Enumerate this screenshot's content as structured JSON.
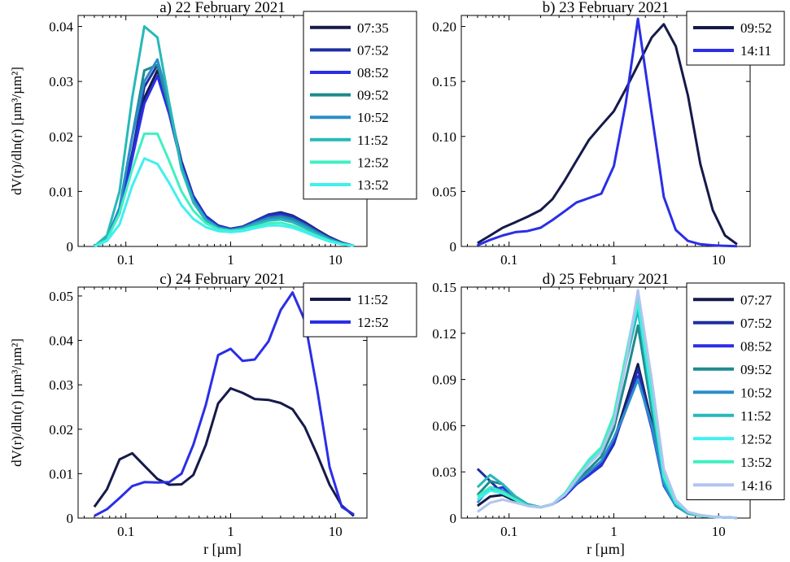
{
  "figure": {
    "ylabel_left": "dV(r)/dln(r) [µm³/µm²]",
    "xlabel_bottom": "r [µm]"
  },
  "chart_data": [
    {
      "type": "line",
      "title": "a) 22 February 2021",
      "xscale": "log",
      "xlim": [
        0.035,
        20
      ],
      "ylim": [
        0,
        0.042
      ],
      "xticks": [
        0.1,
        1,
        10
      ],
      "xtick_labels": [
        "0.1",
        "1",
        "10"
      ],
      "yticks": [
        0,
        0.01,
        0.02,
        0.03,
        0.04
      ],
      "ytick_labels": [
        "0",
        "0.01",
        "0.02",
        "0.03",
        "0.04"
      ],
      "ylabel": "dV(r)/dln(r) [µm³/µm²]",
      "xlabel": "",
      "legend_position": "top-right",
      "x": [
        0.05,
        0.066,
        0.087,
        0.115,
        0.15,
        0.2,
        0.26,
        0.34,
        0.44,
        0.58,
        0.76,
        1.0,
        1.3,
        1.7,
        2.3,
        3.0,
        3.9,
        5.1,
        6.7,
        8.8,
        11.5,
        15.0
      ],
      "series": [
        {
          "name": "07:35",
          "color": "#151a4a",
          "values": [
            0,
            0.0015,
            0.006,
            0.017,
            0.027,
            0.032,
            0.025,
            0.015,
            0.009,
            0.0055,
            0.0038,
            0.0032,
            0.0036,
            0.0046,
            0.0058,
            0.0062,
            0.0056,
            0.0044,
            0.003,
            0.0017,
            0.0007,
            0.0001
          ]
        },
        {
          "name": "07:52",
          "color": "#1e2ea0",
          "values": [
            0,
            0.0015,
            0.006,
            0.017,
            0.029,
            0.033,
            0.025,
            0.0155,
            0.0092,
            0.0055,
            0.0038,
            0.0032,
            0.0036,
            0.0046,
            0.0058,
            0.0061,
            0.0055,
            0.0043,
            0.0029,
            0.0016,
            0.0007,
            0.0001
          ]
        },
        {
          "name": "08:52",
          "color": "#2b2ee6",
          "values": [
            0,
            0.0015,
            0.006,
            0.016,
            0.026,
            0.031,
            0.024,
            0.0148,
            0.0088,
            0.0053,
            0.0037,
            0.0031,
            0.0035,
            0.0045,
            0.0055,
            0.0058,
            0.0052,
            0.0041,
            0.0027,
            0.0015,
            0.0006,
            0.0001
          ]
        },
        {
          "name": "09:52",
          "color": "#1e8a8e",
          "values": [
            0,
            0.0015,
            0.007,
            0.02,
            0.032,
            0.033,
            0.025,
            0.0145,
            0.0085,
            0.005,
            0.0035,
            0.003,
            0.0034,
            0.0043,
            0.0052,
            0.0055,
            0.005,
            0.0039,
            0.0026,
            0.0014,
            0.0006,
            0.0001
          ]
        },
        {
          "name": "10:52",
          "color": "#2a8ec8",
          "values": [
            0,
            0.0015,
            0.007,
            0.02,
            0.03,
            0.034,
            0.026,
            0.0145,
            0.0085,
            0.005,
            0.0034,
            0.003,
            0.0033,
            0.0042,
            0.005,
            0.0052,
            0.0047,
            0.0037,
            0.0025,
            0.0013,
            0.0005,
            0.0001
          ]
        },
        {
          "name": "11:52",
          "color": "#27b8b8",
          "values": [
            0,
            0.002,
            0.01,
            0.027,
            0.04,
            0.038,
            0.026,
            0.014,
            0.008,
            0.0047,
            0.0033,
            0.0029,
            0.0032,
            0.004,
            0.0047,
            0.0049,
            0.0044,
            0.0034,
            0.0022,
            0.0012,
            0.0005,
            0.0001
          ]
        },
        {
          "name": "12:52",
          "color": "#40f0c0",
          "values": [
            0,
            0.0012,
            0.006,
            0.014,
            0.0205,
            0.0205,
            0.0155,
            0.01,
            0.0065,
            0.0042,
            0.0031,
            0.0028,
            0.003,
            0.0036,
            0.0042,
            0.0043,
            0.0038,
            0.0029,
            0.0019,
            0.001,
            0.0004,
            0.0001
          ]
        },
        {
          "name": "13:52",
          "color": "#3ff0f0",
          "values": [
            0,
            0.001,
            0.004,
            0.011,
            0.016,
            0.015,
            0.0115,
            0.0075,
            0.005,
            0.0035,
            0.0028,
            0.0026,
            0.0028,
            0.0033,
            0.0038,
            0.0038,
            0.0034,
            0.0026,
            0.0017,
            0.0009,
            0.0004,
            0.0001
          ]
        }
      ]
    },
    {
      "type": "line",
      "title": "b) 23 February 2021",
      "xscale": "log",
      "xlim": [
        0.035,
        20
      ],
      "ylim": [
        0,
        0.21
      ],
      "xticks": [
        0.1,
        1,
        10
      ],
      "xtick_labels": [
        "0.1",
        "1",
        "10"
      ],
      "yticks": [
        0,
        0.05,
        0.1,
        0.15,
        0.2
      ],
      "ytick_labels": [
        "0",
        "0.05",
        "0.10",
        "0.15",
        "0.20"
      ],
      "ylabel": "",
      "xlabel": "",
      "legend_position": "top-right",
      "x": [
        0.05,
        0.066,
        0.087,
        0.115,
        0.15,
        0.2,
        0.26,
        0.34,
        0.44,
        0.58,
        0.76,
        1.0,
        1.3,
        1.7,
        2.3,
        3.0,
        3.9,
        5.1,
        6.7,
        8.8,
        11.5,
        15.0
      ],
      "series": [
        {
          "name": "09:52",
          "color": "#151a4a",
          "values": [
            0.003,
            0.01,
            0.017,
            0.022,
            0.027,
            0.033,
            0.043,
            0.06,
            0.078,
            0.097,
            0.11,
            0.123,
            0.143,
            0.165,
            0.19,
            0.202,
            0.182,
            0.137,
            0.075,
            0.033,
            0.01,
            0.002
          ]
        },
        {
          "name": "14:11",
          "color": "#2b2ee6",
          "values": [
            0.001,
            0.006,
            0.01,
            0.013,
            0.014,
            0.017,
            0.024,
            0.032,
            0.04,
            0.044,
            0.048,
            0.073,
            0.13,
            0.207,
            0.12,
            0.045,
            0.015,
            0.005,
            0.002,
            0.001,
            0.0005,
            0.0002
          ]
        }
      ]
    },
    {
      "type": "line",
      "title": "c) 24 February 2021",
      "xscale": "log",
      "xlim": [
        0.035,
        20
      ],
      "ylim": [
        0,
        0.052
      ],
      "xticks": [
        0.1,
        1,
        10
      ],
      "xtick_labels": [
        "0.1",
        "1",
        "10"
      ],
      "yticks": [
        0,
        0.01,
        0.02,
        0.03,
        0.04,
        0.05
      ],
      "ytick_labels": [
        "0",
        "0.01",
        "0.02",
        "0.03",
        "0.04",
        "0.05"
      ],
      "ylabel": "dV(r)/dln(r) [µm³/µm²]",
      "xlabel": "r [µm]",
      "legend_position": "top-right",
      "x": [
        0.05,
        0.066,
        0.087,
        0.115,
        0.15,
        0.2,
        0.26,
        0.34,
        0.44,
        0.58,
        0.76,
        1.0,
        1.3,
        1.7,
        2.3,
        3.0,
        3.9,
        5.1,
        6.7,
        8.8,
        11.5,
        15.0
      ],
      "series": [
        {
          "name": "11:52",
          "color": "#151a4a",
          "values": [
            0.0025,
            0.0065,
            0.0132,
            0.0146,
            0.0118,
            0.0088,
            0.0075,
            0.0076,
            0.0097,
            0.0165,
            0.0258,
            0.0292,
            0.0282,
            0.0268,
            0.0266,
            0.0259,
            0.0245,
            0.0205,
            0.0143,
            0.0075,
            0.0028,
            0.0005
          ]
        },
        {
          "name": "12:52",
          "color": "#2b2ee6",
          "values": [
            0.0005,
            0.002,
            0.0045,
            0.0072,
            0.0081,
            0.008,
            0.0081,
            0.01,
            0.0165,
            0.0255,
            0.0367,
            0.0381,
            0.0354,
            0.0357,
            0.0398,
            0.0468,
            0.0508,
            0.0445,
            0.029,
            0.0115,
            0.0025,
            0.0008
          ]
        }
      ]
    },
    {
      "type": "line",
      "title": "d) 25 February 2021",
      "xscale": "log",
      "xlim": [
        0.035,
        20
      ],
      "ylim": [
        0,
        0.15
      ],
      "xticks": [
        0.1,
        1,
        10
      ],
      "xtick_labels": [
        "0.1",
        "1",
        "10"
      ],
      "yticks": [
        0,
        0.03,
        0.06,
        0.09,
        0.12,
        0.15
      ],
      "ytick_labels": [
        "0",
        "0.03",
        "0.06",
        "0.09",
        "0.12",
        "0.15"
      ],
      "ylabel": "",
      "xlabel": "r [µm]",
      "legend_position": "top-right",
      "x": [
        0.05,
        0.066,
        0.087,
        0.115,
        0.15,
        0.2,
        0.26,
        0.34,
        0.44,
        0.58,
        0.76,
        1.0,
        1.3,
        1.7,
        2.3,
        3.0,
        3.9,
        5.1,
        6.7,
        8.8,
        11.5,
        15.0
      ],
      "series": [
        {
          "name": "07:27",
          "color": "#151a4a",
          "values": [
            0.008,
            0.014,
            0.015,
            0.011,
            0.008,
            0.007,
            0.009,
            0.014,
            0.022,
            0.028,
            0.035,
            0.05,
            0.075,
            0.1,
            0.062,
            0.022,
            0.008,
            0.003,
            0.0015,
            0.0008,
            0.0004,
            0.0002
          ]
        },
        {
          "name": "07:52",
          "color": "#1e2ea0",
          "values": [
            0.032,
            0.024,
            0.016,
            0.012,
            0.008,
            0.007,
            0.009,
            0.014,
            0.022,
            0.028,
            0.034,
            0.048,
            0.072,
            0.097,
            0.06,
            0.022,
            0.008,
            0.003,
            0.0015,
            0.0008,
            0.0004,
            0.0002
          ]
        },
        {
          "name": "08:52",
          "color": "#2b2ee6",
          "values": [
            0.012,
            0.018,
            0.02,
            0.014,
            0.009,
            0.007,
            0.009,
            0.014,
            0.022,
            0.028,
            0.035,
            0.05,
            0.07,
            0.092,
            0.058,
            0.021,
            0.008,
            0.003,
            0.0015,
            0.0008,
            0.0004,
            0.0002
          ]
        },
        {
          "name": "09:52",
          "color": "#1e8a8e",
          "values": [
            0.015,
            0.024,
            0.022,
            0.014,
            0.009,
            0.007,
            0.009,
            0.015,
            0.024,
            0.032,
            0.04,
            0.058,
            0.09,
            0.125,
            0.07,
            0.024,
            0.009,
            0.003,
            0.0015,
            0.0008,
            0.0004,
            0.0002
          ]
        },
        {
          "name": "10:52",
          "color": "#2a8ec8",
          "values": [
            0.01,
            0.02,
            0.018,
            0.013,
            0.009,
            0.007,
            0.009,
            0.015,
            0.023,
            0.03,
            0.037,
            0.052,
            0.07,
            0.09,
            0.06,
            0.022,
            0.008,
            0.003,
            0.0015,
            0.0008,
            0.0004,
            0.0002
          ]
        },
        {
          "name": "11:52",
          "color": "#27b8b8",
          "values": [
            0.02,
            0.028,
            0.022,
            0.014,
            0.009,
            0.007,
            0.009,
            0.016,
            0.026,
            0.036,
            0.044,
            0.063,
            0.1,
            0.135,
            0.075,
            0.025,
            0.009,
            0.003,
            0.0015,
            0.0008,
            0.0004,
            0.0002
          ]
        },
        {
          "name": "12:52",
          "color": "#3ff0f0",
          "values": [
            0.012,
            0.018,
            0.016,
            0.012,
            0.008,
            0.007,
            0.009,
            0.016,
            0.026,
            0.037,
            0.045,
            0.065,
            0.105,
            0.14,
            0.08,
            0.027,
            0.01,
            0.004,
            0.0015,
            0.0008,
            0.0004,
            0.0002
          ]
        },
        {
          "name": "13:52",
          "color": "#40f0c0",
          "values": [
            0.014,
            0.02,
            0.017,
            0.012,
            0.008,
            0.007,
            0.009,
            0.016,
            0.027,
            0.038,
            0.046,
            0.067,
            0.105,
            0.145,
            0.085,
            0.03,
            0.011,
            0.004,
            0.0015,
            0.0008,
            0.0004,
            0.0002
          ]
        },
        {
          "name": "14:16",
          "color": "#b0c4f0",
          "values": [
            0.004,
            0.01,
            0.012,
            0.01,
            0.008,
            0.007,
            0.009,
            0.015,
            0.025,
            0.035,
            0.043,
            0.062,
            0.1,
            0.148,
            0.09,
            0.032,
            0.012,
            0.004,
            0.002,
            0.001,
            0.0005,
            0.0002
          ]
        }
      ]
    }
  ]
}
